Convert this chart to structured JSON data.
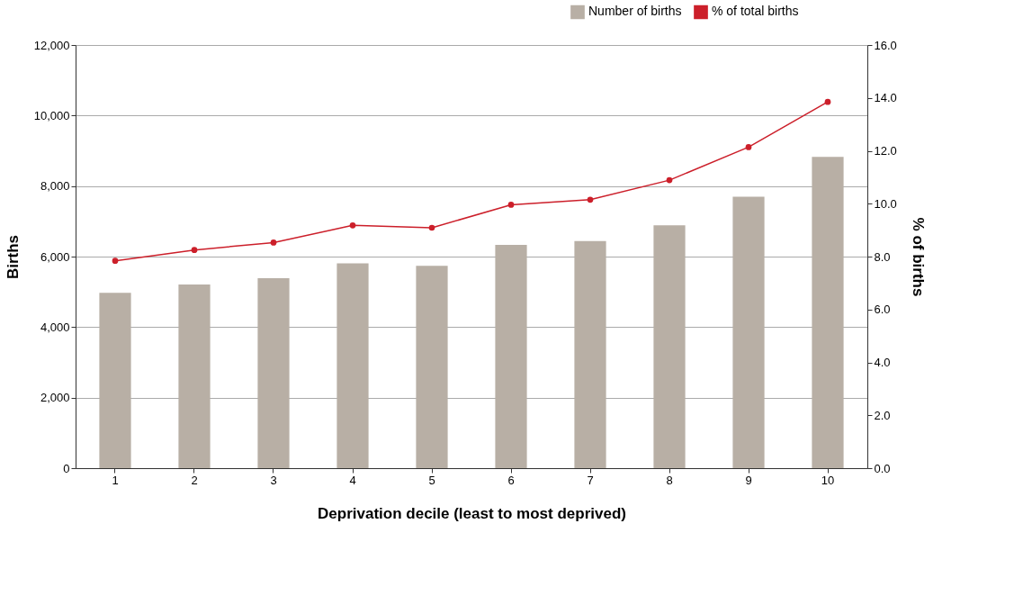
{
  "chart_data": {
    "type": "bar",
    "xlabel": "Deprivation decile (least to most deprived)",
    "ylabel": "Births",
    "y2label": "% of births",
    "categories": [
      "1",
      "2",
      "3",
      "4",
      "5",
      "6",
      "7",
      "8",
      "9",
      "10"
    ],
    "series": [
      {
        "name": "Number of births",
        "color": "#b8afa5",
        "values": [
          4970,
          5210,
          5390,
          5810,
          5740,
          6330,
          6440,
          6890,
          7700,
          8830
        ]
      },
      {
        "name": "% of total births",
        "color": "#cc1f2a",
        "type": "line",
        "axis": "y2",
        "marker": "circle",
        "values": [
          7.84,
          8.25,
          8.53,
          9.18,
          9.09,
          9.96,
          10.15,
          10.89,
          12.14,
          13.85
        ]
      }
    ],
    "ylim": [
      0,
      12000
    ],
    "yticks": [
      0,
      {
        "value": 2000,
        "label": "2,000"
      },
      {
        "value": 4000,
        "label": "4,000"
      },
      {
        "value": 6000,
        "label": "6,000"
      },
      {
        "value": 8000,
        "label": "8,000"
      },
      {
        "value": 10000,
        "label": "10,000"
      },
      {
        "value": 12000,
        "label": "12,000"
      }
    ],
    "y2lim": [
      0,
      16
    ],
    "y2ticks": [
      {
        "value": 0,
        "label": "0.0"
      },
      {
        "value": 2,
        "label": "2.0"
      },
      {
        "value": 4,
        "label": "4.0"
      },
      {
        "value": 6,
        "label": "6.0"
      },
      {
        "value": 8,
        "label": "8.0"
      },
      {
        "value": 10,
        "label": "10.0"
      },
      {
        "value": 12,
        "label": "12.0"
      },
      {
        "value": 14,
        "label": "14.0"
      },
      {
        "value": 16,
        "label": "16.0"
      }
    ],
    "grid": "y",
    "legend": "top right"
  }
}
